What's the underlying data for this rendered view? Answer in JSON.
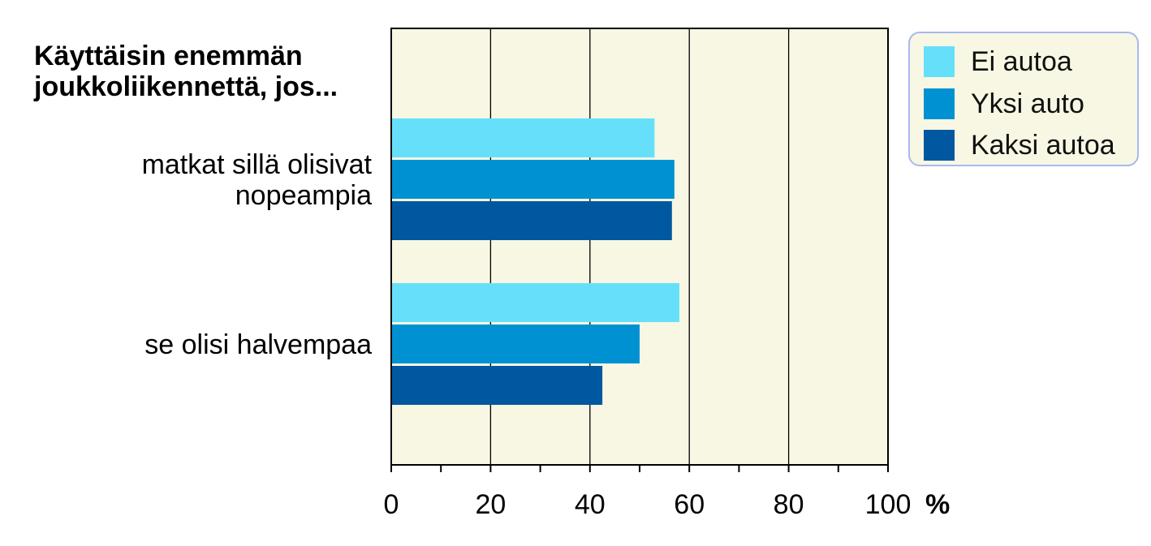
{
  "chart_data": {
    "type": "bar",
    "orientation": "horizontal",
    "title": "Käyttäisin enemmän joukkoliikennettä, jos...",
    "title_lines": [
      "Käyttäisin enemmän",
      "joukkoliikennettä, jos..."
    ],
    "categories": [
      [
        "matkat sillä olisivat",
        "nopeampia"
      ],
      [
        "se olisi halvempaa"
      ]
    ],
    "series": [
      {
        "name": "Ei autoa",
        "color": "#66e0fa",
        "values": [
          53,
          58
        ]
      },
      {
        "name": "Yksi auto",
        "color": "#0091d2",
        "values": [
          57,
          50
        ]
      },
      {
        "name": "Kaksi autoa",
        "color": "#0058a0",
        "values": [
          56.5,
          42.5
        ]
      }
    ],
    "xlim": [
      0,
      100
    ],
    "xticks": [
      "0",
      "20",
      "40",
      "60",
      "80",
      "100"
    ],
    "xlabel": "%",
    "grid": true,
    "plot_background": "#f7f7e3",
    "legend_position": "top-right"
  }
}
